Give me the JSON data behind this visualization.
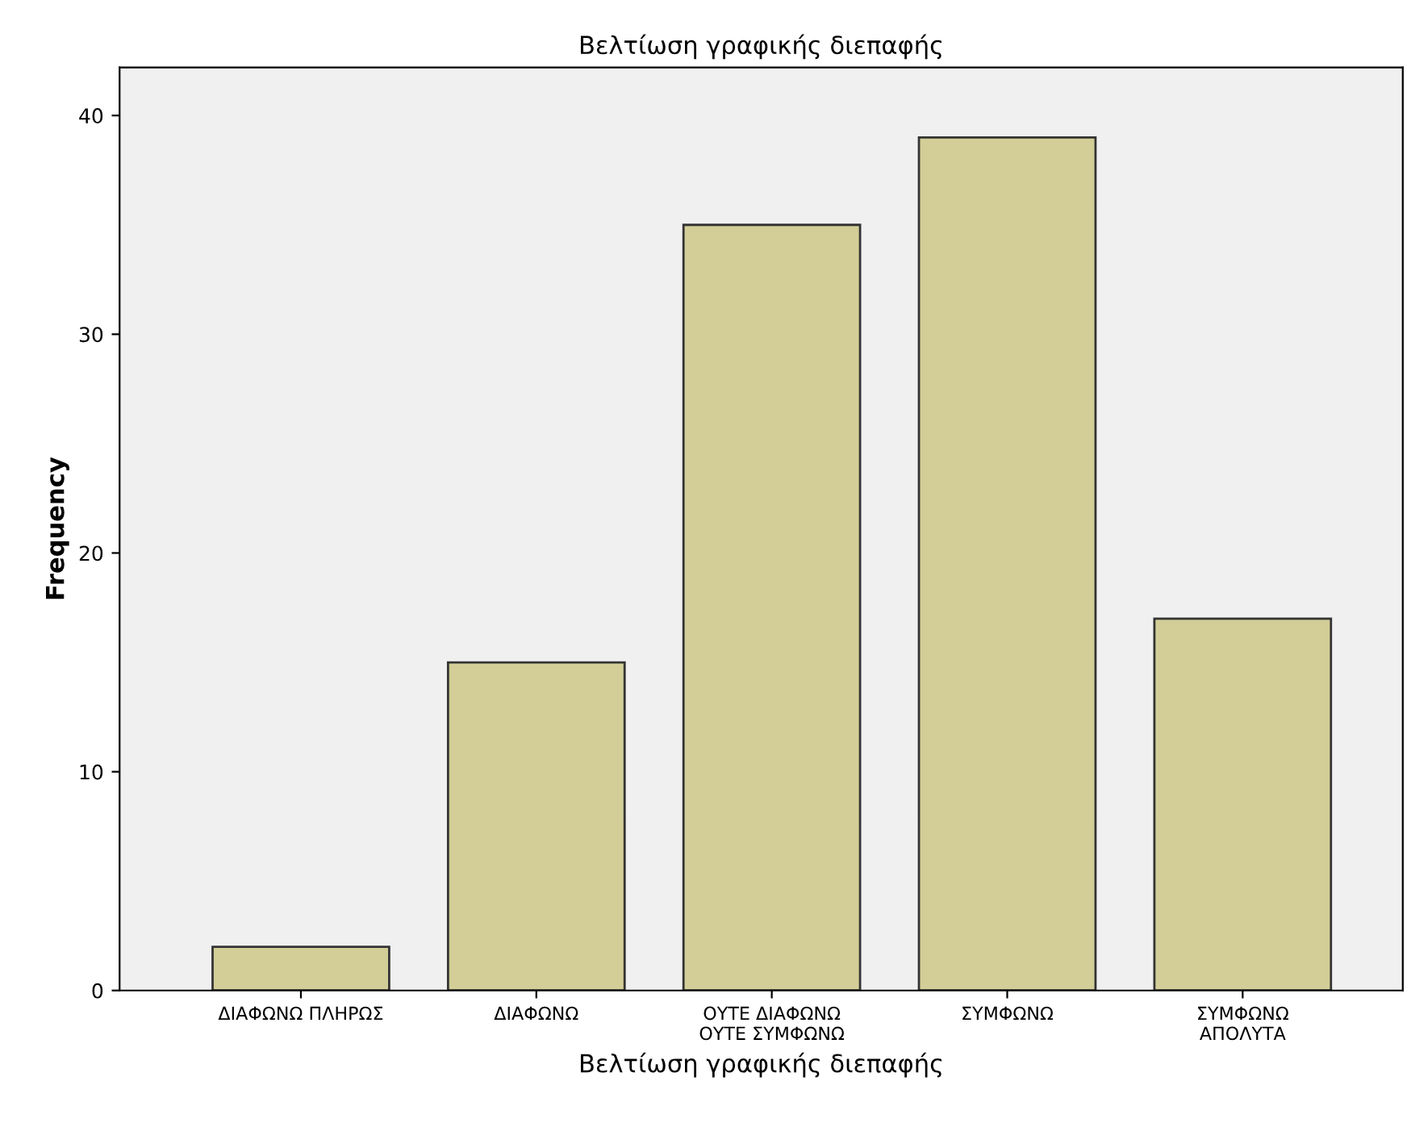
{
  "chart_data": {
    "type": "bar",
    "title": "Βελτίωση γραφικής διεπαφής",
    "xlabel": "Βελτίωση γραφικής διεπαφής",
    "ylabel": "Frequency",
    "categories": [
      "ΔΙΑΦΩΝΩ ΠΛΗΡΩΣ",
      "ΔΙΑΦΩΝΩ",
      "ΟΥΤΕ ΔΙΑΦΩΝΩ\nΟΥΤΕ ΣΥΜΦΩΝΩ",
      "ΣΥΜΦΩΝΩ",
      "ΣΥΜΦΩΝΩ\nΑΠΟΛΥΤΑ"
    ],
    "values": [
      2,
      15,
      35,
      39,
      17
    ],
    "color": "#d3ce97",
    "ylim": [
      0,
      42.2
    ],
    "yticks": [
      0,
      10,
      20,
      30,
      40
    ],
    "grid": false,
    "legend": false
  }
}
